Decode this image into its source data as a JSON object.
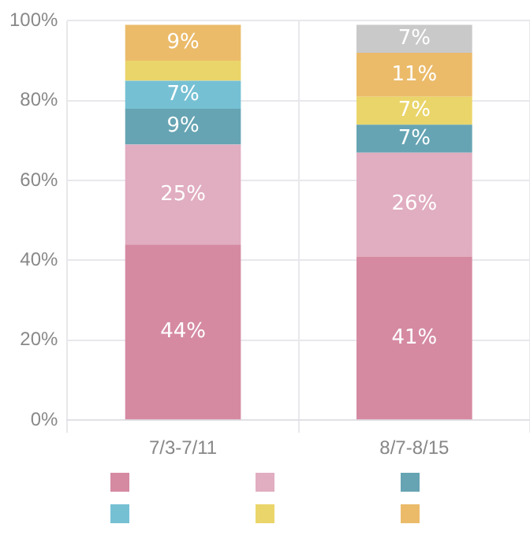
{
  "chart_data": {
    "type": "bar",
    "stacked": true,
    "categories": [
      "7/3-7/11",
      "8/7-8/15"
    ],
    "series": [
      {
        "color": "#d58aa2",
        "values": [
          44,
          41
        ],
        "value_labels": [
          "44%",
          "41%"
        ]
      },
      {
        "color": "#e1adc0",
        "values": [
          25,
          26
        ],
        "value_labels": [
          "25%",
          "26%"
        ]
      },
      {
        "color": "#66a4b3",
        "values": [
          9,
          7
        ],
        "value_labels": [
          "9%",
          "7%"
        ]
      },
      {
        "color": "#76c0d4",
        "values": [
          7,
          null
        ],
        "value_labels": [
          "7%",
          null
        ]
      },
      {
        "color": "#ead56a",
        "values": [
          5,
          7
        ],
        "value_labels": [
          null,
          "7%"
        ]
      },
      {
        "color": "#ebbb6a",
        "values": [
          9,
          11
        ],
        "value_labels": [
          "9%",
          "11%"
        ]
      },
      {
        "color": "#c9c9c9",
        "values": [
          null,
          7
        ],
        "value_labels": [
          null,
          "7%"
        ]
      }
    ],
    "ylim": [
      0,
      100
    ],
    "yticks": [
      {
        "value": 0,
        "label": "0%"
      },
      {
        "value": 20,
        "label": "20%"
      },
      {
        "value": 40,
        "label": "40%"
      },
      {
        "value": 60,
        "label": "60%"
      },
      {
        "value": 80,
        "label": "80%"
      },
      {
        "value": 100,
        "label": "100%"
      }
    ],
    "grid": true
  }
}
